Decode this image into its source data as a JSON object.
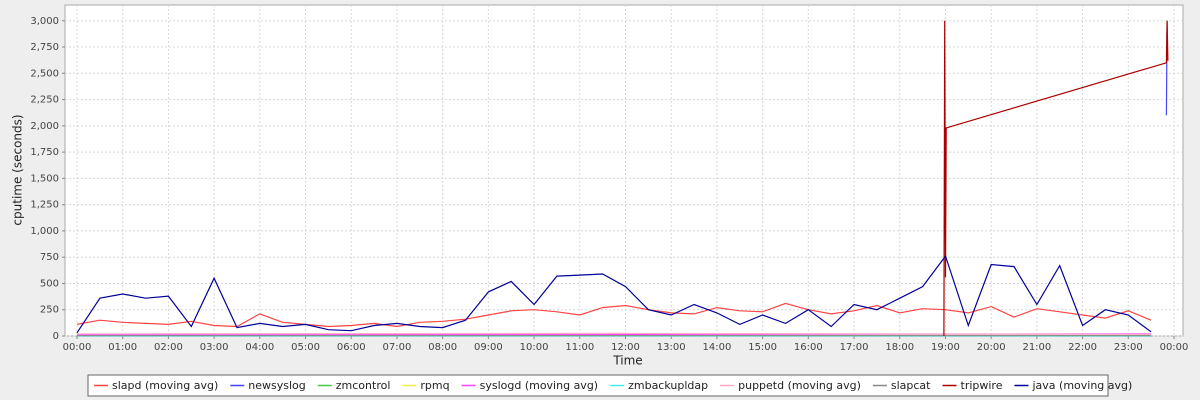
{
  "chart_data": {
    "type": "line",
    "y_label": "cputime (seconds)",
    "x_label": "Time",
    "ylim": [
      0,
      3150
    ],
    "yticks": [
      0,
      250,
      500,
      750,
      {
        "value": 1000,
        "label": "1,000"
      },
      {
        "value": 1250,
        "label": "1,250"
      },
      {
        "value": 1500,
        "label": "1,500"
      },
      {
        "value": 1750,
        "label": "1,750"
      },
      {
        "value": 2000,
        "label": "2,000"
      },
      {
        "value": 2250,
        "label": "2,250"
      },
      {
        "value": 2500,
        "label": "2,500"
      },
      {
        "value": 2750,
        "label": "2,750"
      },
      {
        "value": 3000,
        "label": "3,000"
      }
    ],
    "xticks": [
      "00:00",
      "01:00",
      "02:00",
      "03:00",
      "04:00",
      "05:00",
      "06:00",
      "07:00",
      "08:00",
      "09:00",
      "10:00",
      "11:00",
      "12:00",
      "13:00",
      "14:00",
      "15:00",
      "16:00",
      "17:00",
      "18:00",
      "19:00",
      "20:00",
      "21:00",
      "22:00",
      "23:00",
      "00:00"
    ],
    "grid": true,
    "x": [
      "00:00",
      "00:30",
      "01:00",
      "01:30",
      "02:00",
      "02:30",
      "03:00",
      "03:30",
      "04:00",
      "04:30",
      "05:00",
      "05:30",
      "06:00",
      "06:30",
      "07:00",
      "07:30",
      "08:00",
      "08:30",
      "09:00",
      "09:30",
      "10:00",
      "10:30",
      "11:00",
      "11:30",
      "12:00",
      "12:30",
      "13:00",
      "13:30",
      "14:00",
      "14:30",
      "15:00",
      "15:30",
      "16:00",
      "16:30",
      "17:00",
      "17:30",
      "18:00",
      "18:30",
      "19:00",
      "19:30",
      "20:00",
      "20:30",
      "21:00",
      "21:30",
      "22:00",
      "22:30",
      "23:00",
      "23:30"
    ],
    "series": [
      {
        "name": "slapd (moving avg)",
        "color": "#ff4444",
        "values": [
          110,
          150,
          130,
          120,
          110,
          140,
          100,
          90,
          210,
          130,
          110,
          90,
          100,
          120,
          90,
          130,
          140,
          160,
          200,
          240,
          250,
          230,
          200,
          270,
          290,
          250,
          220,
          210,
          270,
          240,
          230,
          310,
          250,
          210,
          240,
          290,
          220,
          260,
          250,
          220,
          280,
          180,
          260,
          230,
          200,
          170,
          240,
          150
        ]
      },
      {
        "name": "newsyslog",
        "color": "#4444ff",
        "x": [
          "23:50",
          "23:51"
        ],
        "values": [
          2100,
          3000
        ]
      },
      {
        "name": "zmcontrol",
        "color": "#44cc44",
        "x": [
          "00:00",
          "12:00",
          "23:30"
        ],
        "values": [
          5,
          5,
          5
        ]
      },
      {
        "name": "rpmq",
        "color": "#eeee44",
        "x": [
          "00:00",
          "12:00",
          "23:30"
        ],
        "values": [
          2,
          2,
          2
        ]
      },
      {
        "name": "syslogd (moving avg)",
        "color": "#ff44ff",
        "x": [
          "00:00",
          "12:00",
          "23:30"
        ],
        "values": [
          10,
          15,
          20
        ]
      },
      {
        "name": "zmbackupldap",
        "color": "#44eeee",
        "x": [
          "00:00",
          "12:00",
          "23:30"
        ],
        "values": [
          0,
          0,
          0
        ]
      },
      {
        "name": "puppetd (moving avg)",
        "color": "#ffaacc",
        "x": [
          "00:00",
          "12:00",
          "23:30"
        ],
        "values": [
          20,
          25,
          15
        ]
      },
      {
        "name": "slapcat",
        "color": "#888888",
        "x": [
          "00:00",
          "12:00",
          "23:30"
        ],
        "values": [
          3,
          3,
          3
        ]
      },
      {
        "name": "tripwire",
        "color": "#aa0000",
        "x": [
          "18:58",
          "18:59",
          "19:00",
          "19:01",
          "23:50",
          "23:51",
          "23:52"
        ],
        "values": [
          0,
          3000,
          560,
          1980,
          2600,
          3000,
          2620
        ]
      },
      {
        "name": "java (moving avg)",
        "color": "#000099",
        "values": [
          30,
          360,
          400,
          360,
          380,
          90,
          550,
          80,
          120,
          90,
          110,
          60,
          50,
          100,
          120,
          90,
          80,
          150,
          420,
          520,
          300,
          570,
          580,
          590,
          470,
          250,
          200,
          300,
          220,
          110,
          200,
          120,
          250,
          90,
          300,
          250,
          360,
          470,
          760,
          100,
          680,
          660,
          300,
          670,
          100,
          250,
          200,
          40
        ]
      }
    ]
  }
}
